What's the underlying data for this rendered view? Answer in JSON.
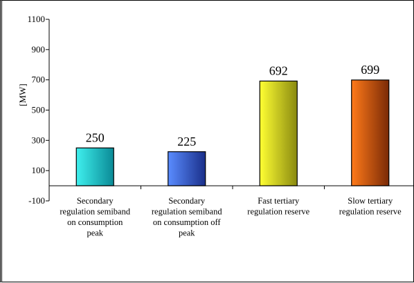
{
  "chart_data": {
    "type": "bar",
    "title": "",
    "xlabel": "",
    "ylabel": "[MW]",
    "ylim": [
      -100,
      1100
    ],
    "yticks": [
      -100,
      100,
      300,
      500,
      700,
      900,
      1100
    ],
    "grid": false,
    "legend": "none",
    "categories": [
      [
        "Secondary",
        "regulation semiband",
        "on consumption",
        "peak"
      ],
      [
        "Secondary",
        "regulation semiband",
        "on consumption off",
        "peak"
      ],
      [
        "Fast tertiary",
        "regulation reserve"
      ],
      [
        "Slow tertiary",
        "regulation reserve"
      ]
    ],
    "values": [
      250,
      225,
      692,
      699
    ],
    "data_labels": [
      "250",
      "225",
      "692",
      "699"
    ],
    "colors": [
      {
        "light": "#3ff0ee",
        "dark": "#0a8a96"
      },
      {
        "light": "#5a8cff",
        "dark": "#1a2f8a"
      },
      {
        "light": "#ffff33",
        "dark": "#8a8a10"
      },
      {
        "light": "#ff7a1a",
        "dark": "#7a2a06"
      }
    ]
  }
}
